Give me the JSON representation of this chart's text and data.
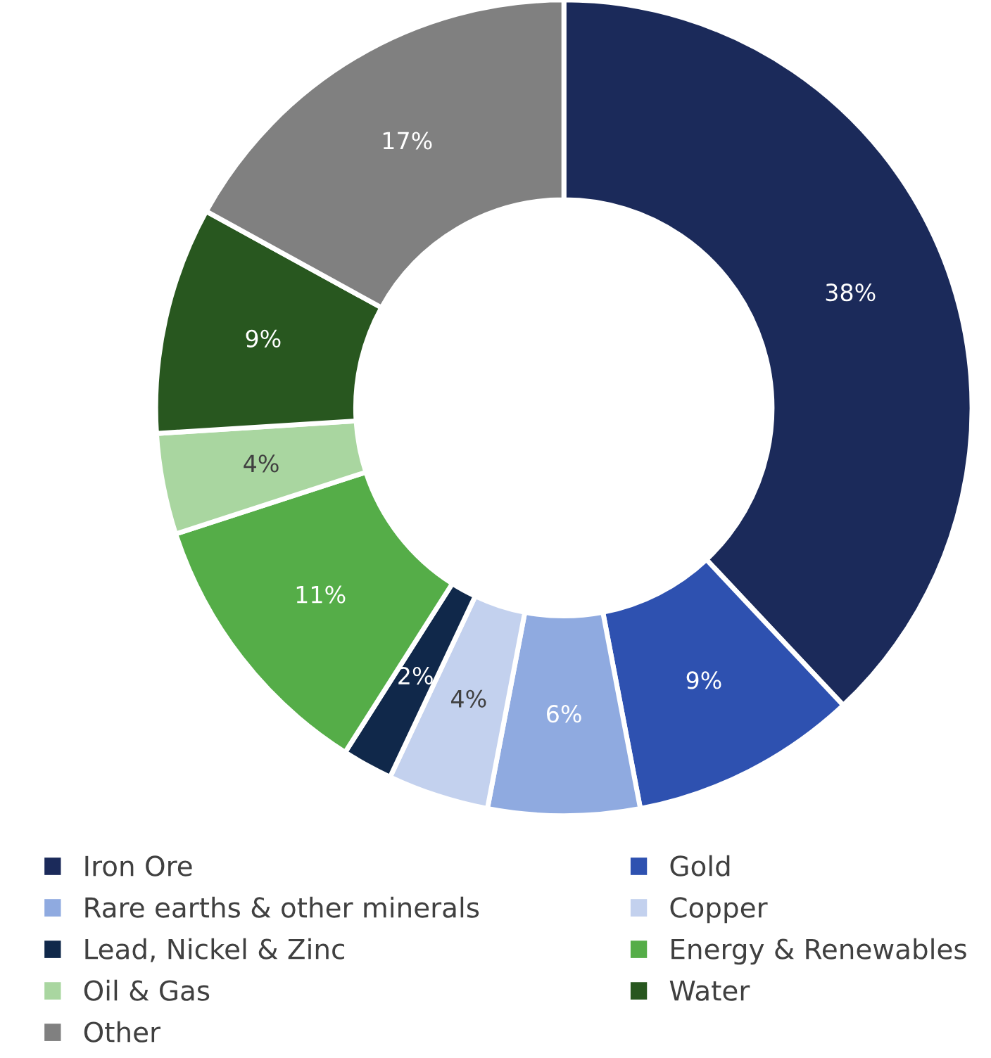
{
  "chart_data": {
    "type": "donut",
    "categories": [
      "Iron Ore",
      "Gold",
      "Rare earths & other minerals",
      "Copper",
      "Lead, Nickel & Zinc",
      "Energy & Renewables",
      "Oil & Gas",
      "Water",
      "Other"
    ],
    "values": [
      38,
      9,
      6,
      4,
      2,
      11,
      4,
      9,
      17
    ],
    "colors": [
      "#1b2a5a",
      "#2e51b0",
      "#8faae0",
      "#c3d1ee",
      "#10284a",
      "#55ad48",
      "#a9d6a0",
      "#28571f",
      "#808080"
    ],
    "value_labels": [
      "38%",
      "9%",
      "6%",
      "4%",
      "2%",
      "11%",
      "4%",
      "9%",
      "17%"
    ],
    "legend": "bottom"
  }
}
